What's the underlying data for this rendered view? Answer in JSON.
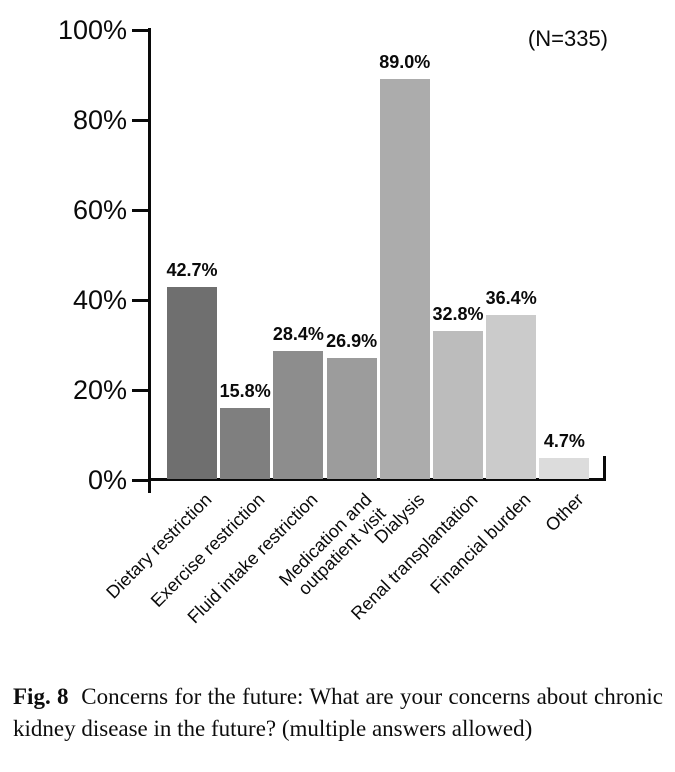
{
  "chart_data": {
    "type": "bar",
    "title": "",
    "n_label": "(N=335)",
    "categories": [
      "Dietary restriction",
      "Exercise restriction",
      "Fluid intake restriction",
      "Medication and\noutpatient visit",
      "Dialysis",
      "Renal transplantation",
      "Financial burden",
      "Other"
    ],
    "values": [
      42.7,
      15.8,
      28.4,
      26.9,
      89.0,
      32.8,
      36.4,
      4.7
    ],
    "value_labels": [
      "42.7%",
      "15.8%",
      "28.4%",
      "26.9%",
      "89.0%",
      "32.8%",
      "36.4%",
      "4.7%"
    ],
    "bar_colors": [
      "#6f6f6f",
      "#7f7f7f",
      "#8d8d8d",
      "#9c9c9c",
      "#acacac",
      "#bcbcbc",
      "#cbcbcb",
      "#dcdcdc"
    ],
    "xlabel": "",
    "ylabel": "",
    "ylim": [
      0,
      100
    ],
    "ytick_values": [
      0,
      20,
      40,
      60,
      80,
      100
    ],
    "ytick_labels": [
      "0%",
      "20%",
      "40%",
      "60%",
      "80%",
      "100%"
    ],
    "grid": false,
    "legend": "none",
    "axis_color": "#0a0a0a"
  },
  "caption": {
    "label": "Fig. 8",
    "text": "Concerns for the future: What are your concerns about chronic kidney disease in the future? (multiple answers allowed)"
  }
}
